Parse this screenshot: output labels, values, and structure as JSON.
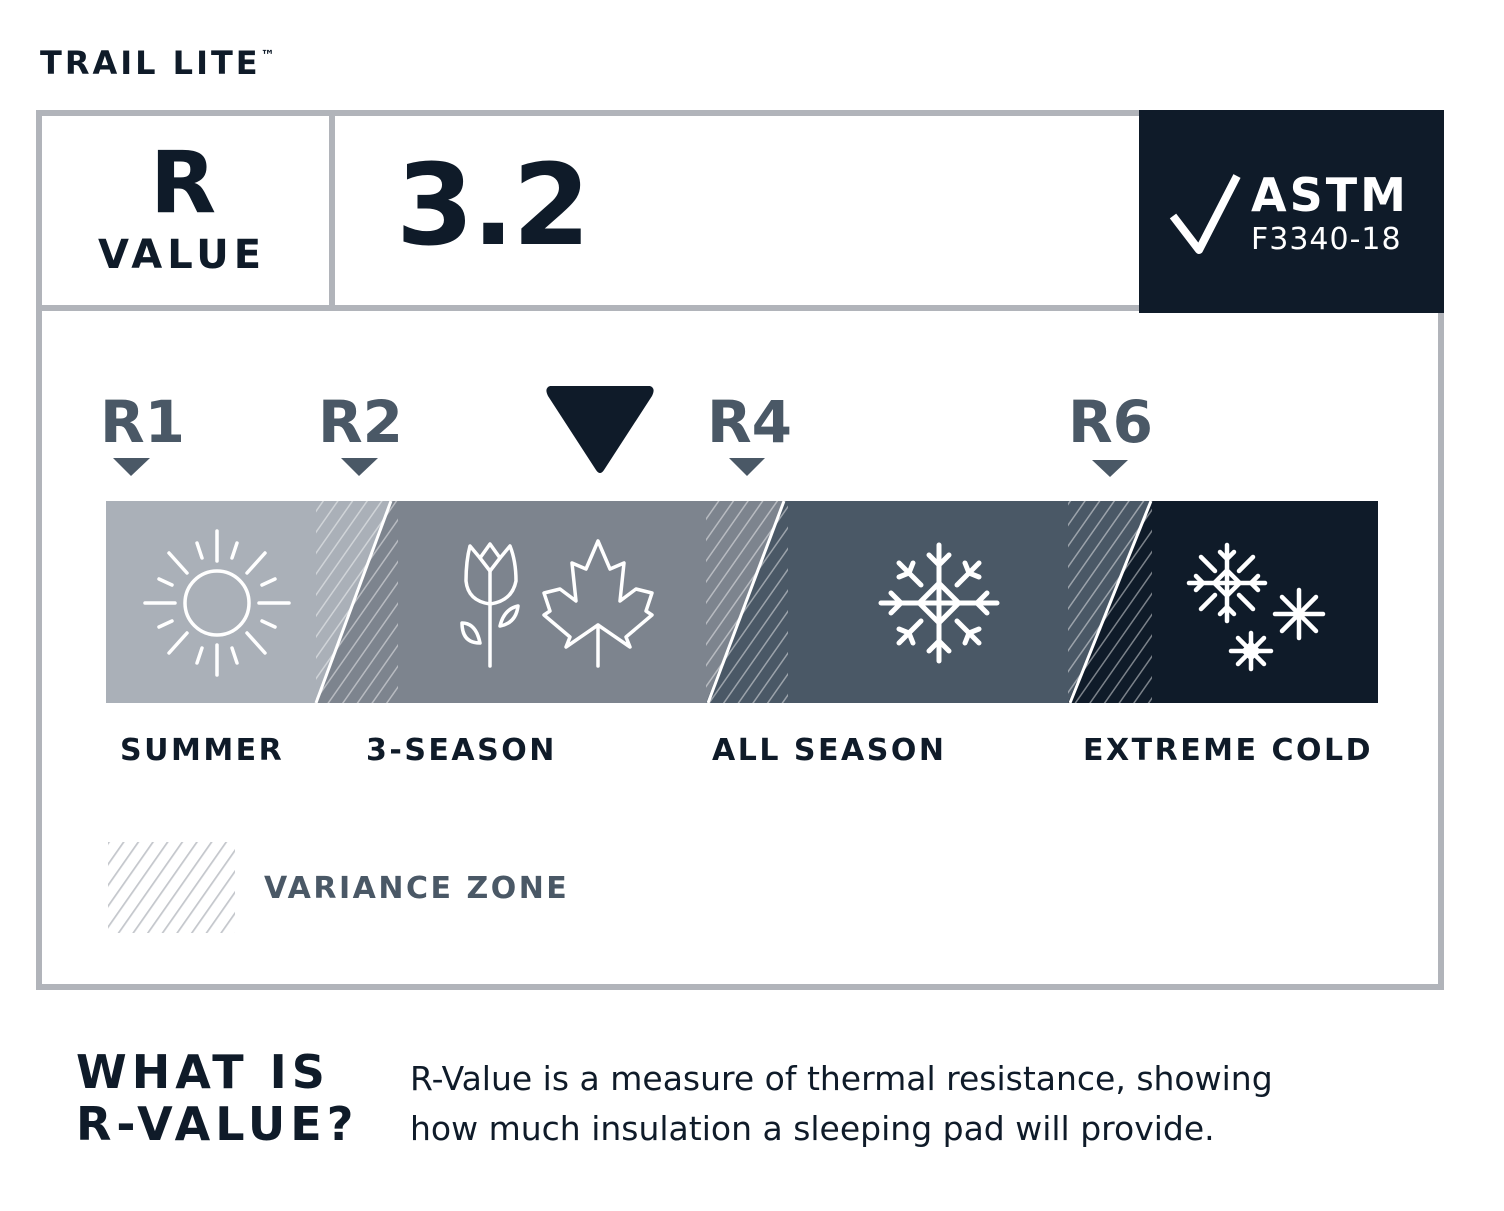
{
  "product": {
    "name": "TRAIL LITE",
    "trademark": "™"
  },
  "rvalue": {
    "letter": "R",
    "word": "VALUE",
    "value": "3.2"
  },
  "certification": {
    "icon": "checkmark-icon",
    "standard": "ASTM",
    "code": "F3340-18"
  },
  "scale": {
    "markers": [
      {
        "label": "R1",
        "value": 1
      },
      {
        "label": "R2",
        "value": 2
      },
      {
        "label": "R4",
        "value": 4
      },
      {
        "label": "R6",
        "value": 6
      }
    ],
    "current_value": 3.2,
    "zones": [
      {
        "label": "SUMMER",
        "icon": "sun-icon",
        "color": "#aab0b8"
      },
      {
        "label": "3-SEASON",
        "icon": "tulip-and-maple-leaf-icon",
        "color": "#7d848e"
      },
      {
        "label": "ALL SEASON",
        "icon": "snowflake-icon",
        "color": "#4a5866"
      },
      {
        "label": "EXTREME COLD",
        "icon": "snowflakes-icon",
        "color": "#0f1b29"
      }
    ]
  },
  "legend": {
    "label": "VARIANCE ZONE"
  },
  "explainer": {
    "heading_line1": "WHAT IS",
    "heading_line2": "R-VALUE?",
    "line1": "R-Value is a measure of thermal resistance, showing",
    "line2": "how much insulation a sleeping pad will provide."
  },
  "colors": {
    "border": "#b1b4ba",
    "dark": "#0f1b29",
    "slate": "#4a5866"
  }
}
